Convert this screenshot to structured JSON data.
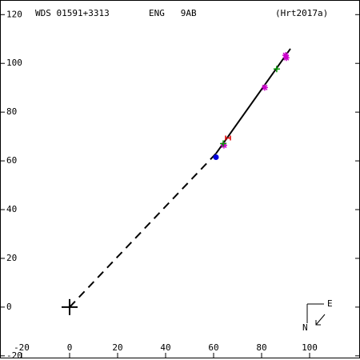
{
  "chart_data": {
    "type": "scatter",
    "title": "WDS 01591+3313",
    "discoverer": "ENG   9AB",
    "reference": "(Hrt2017a)",
    "compass": {
      "north": "N",
      "east": "E"
    },
    "xlim": [
      -29,
      121
    ],
    "ylim": [
      -21.7,
      126
    ],
    "xticks": [
      -20,
      0,
      20,
      40,
      60,
      80,
      100
    ],
    "yticks": [
      -20,
      0,
      20,
      40,
      60,
      80,
      100,
      120
    ],
    "series": [
      {
        "color": "#000000",
        "mode": "line",
        "x": [
          61,
          92
        ],
        "values": [
          63,
          106
        ]
      },
      {
        "color": "#000000",
        "mode": "dashed",
        "x": [
          0,
          61
        ],
        "values": [
          0,
          63
        ]
      },
      {
        "color": "#000000",
        "mode": "cross",
        "x": [
          0
        ],
        "values": [
          0
        ]
      },
      {
        "color": "#cc00cc",
        "mode": "asterisk",
        "x": [
          90,
          90.3,
          81.3,
          64.3
        ],
        "values": [
          103.3,
          102.3,
          90.1,
          66.4
        ]
      },
      {
        "color": "#009900",
        "mode": "plus",
        "x": [
          86.3,
          64
        ],
        "values": [
          97.7,
          67.1
        ]
      },
      {
        "color": "#dd0000",
        "mode": "h",
        "x": [
          66
        ],
        "values": [
          69.4
        ]
      },
      {
        "color": "#0000dd",
        "mode": "dot",
        "x": [
          61
        ],
        "values": [
          61.5
        ]
      }
    ]
  }
}
